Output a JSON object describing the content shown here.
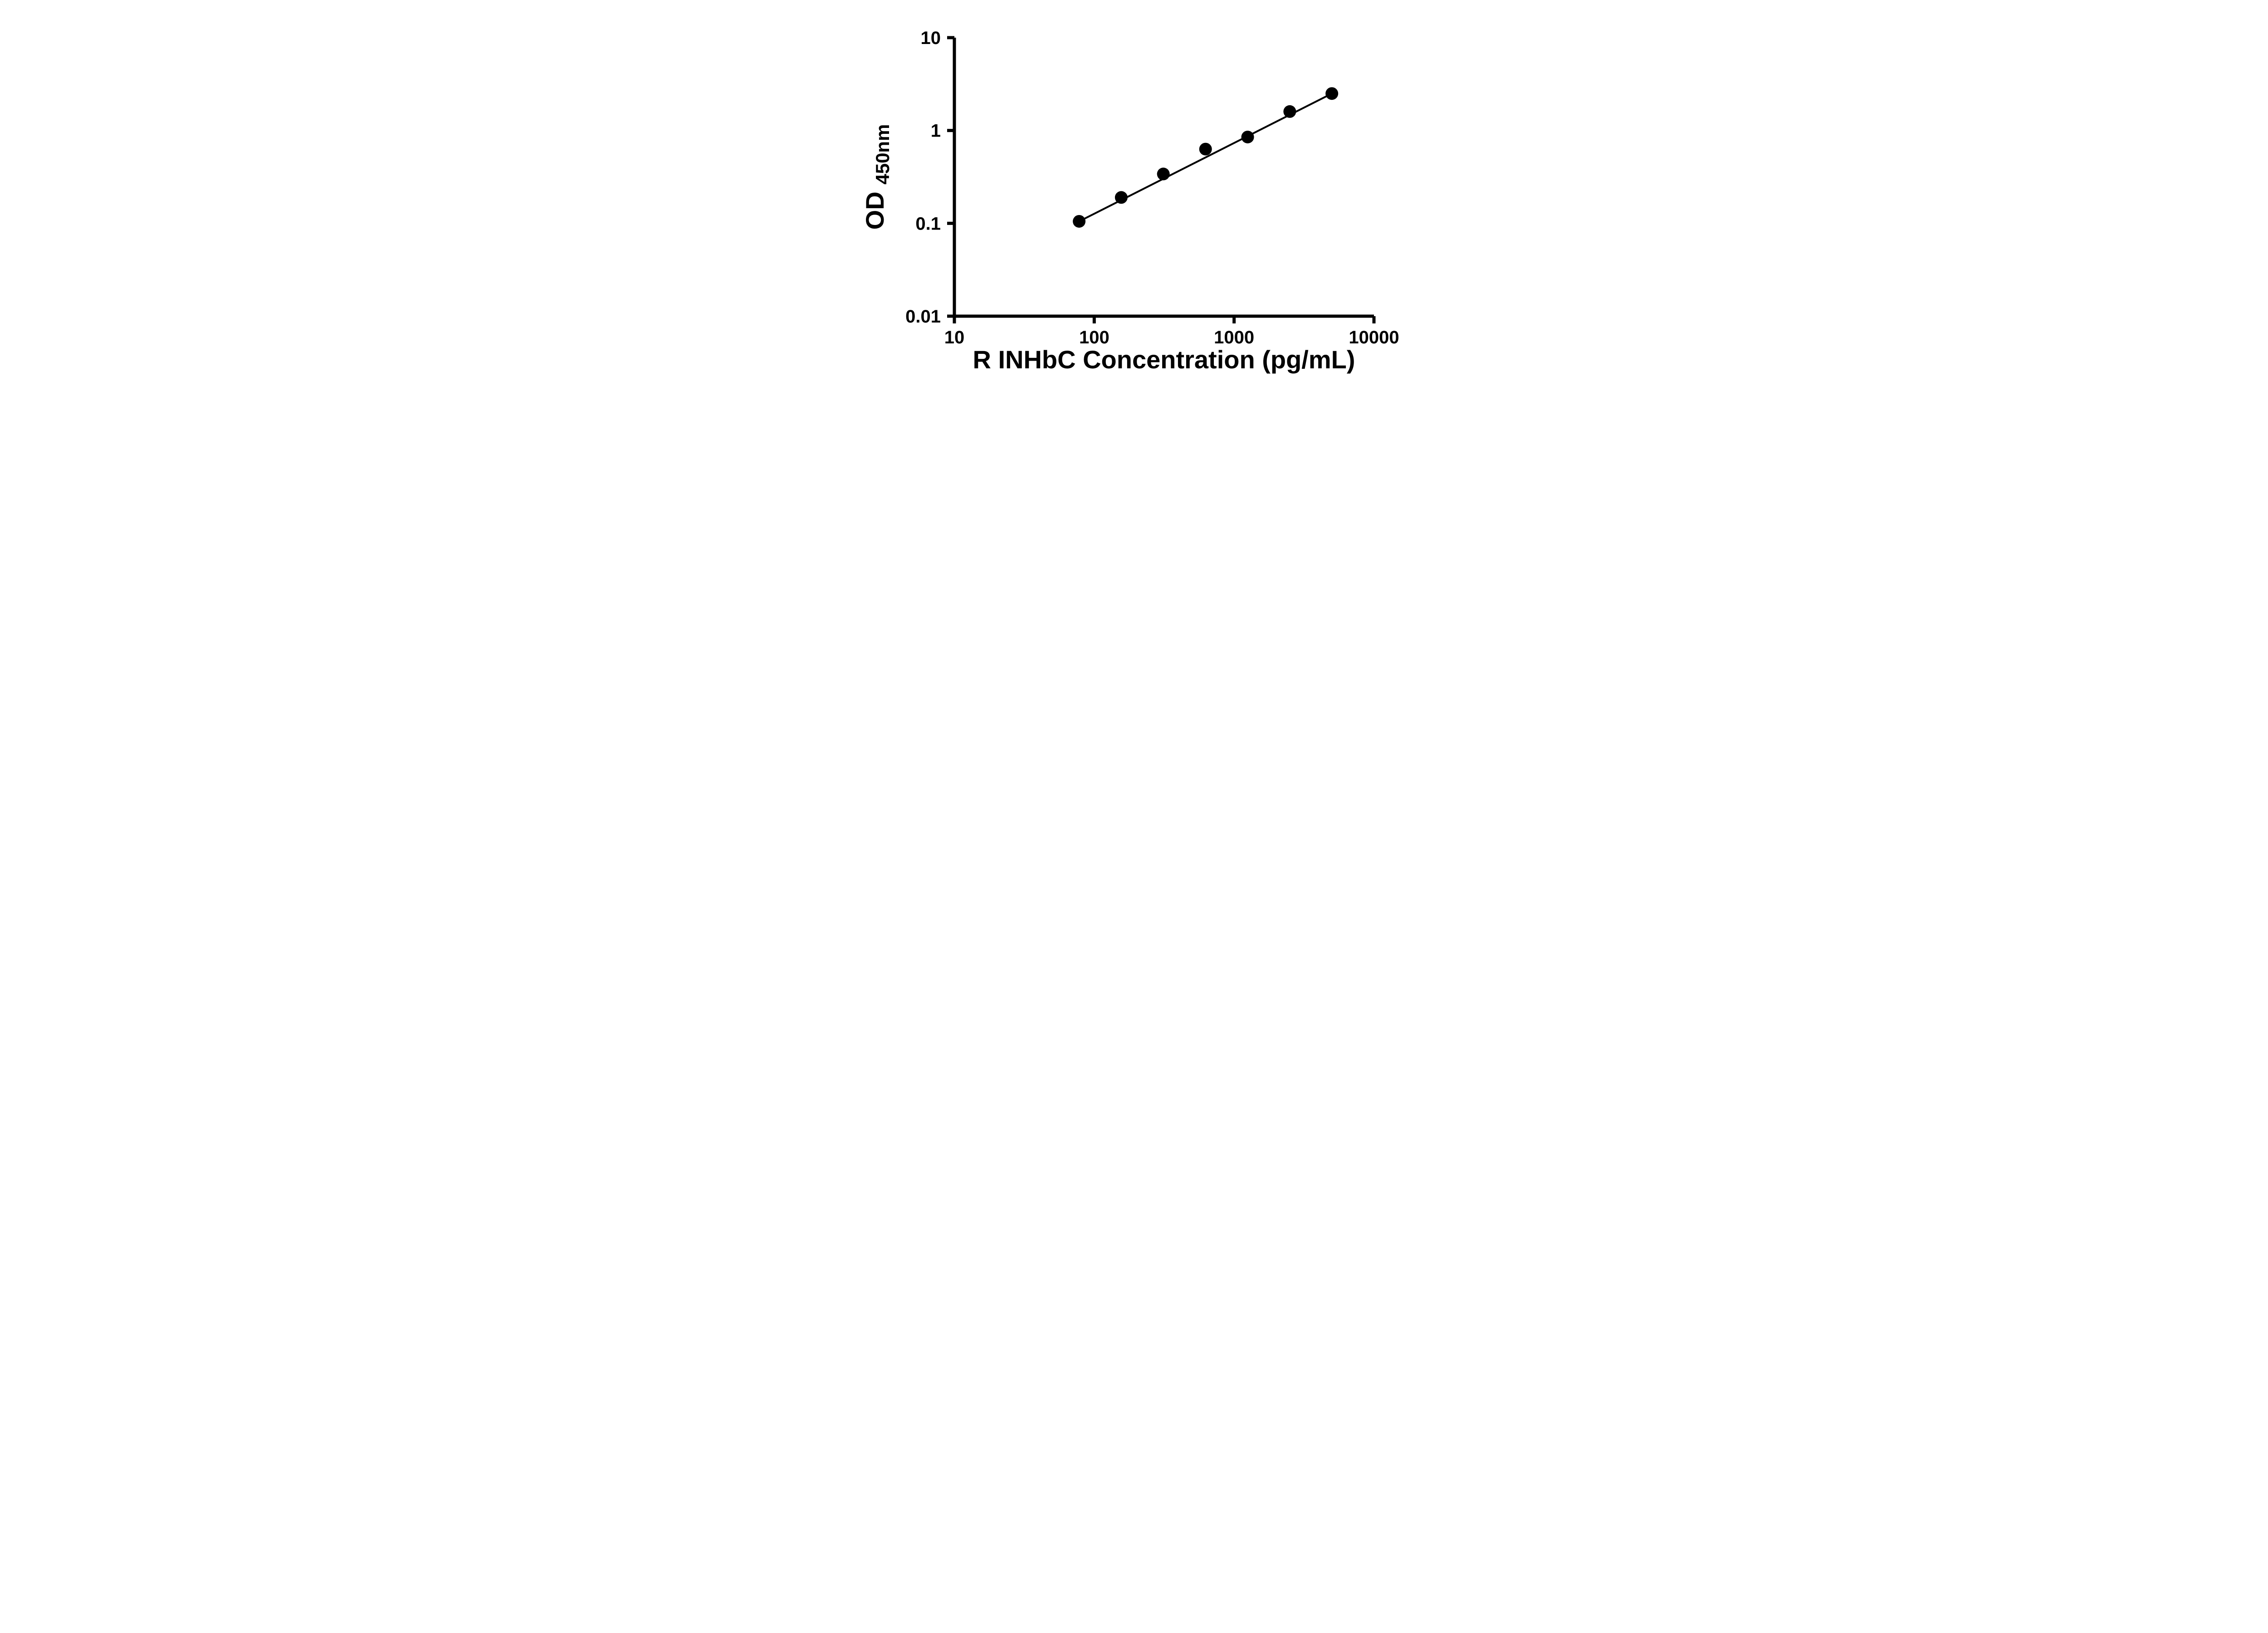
{
  "chart": {
    "xlabel": "R INHbC Concentration (pg/mL)",
    "ylabel_main": "OD",
    "ylabel_sub": "450nm",
    "x_ticks": [
      "10",
      "100",
      "1000",
      "10000"
    ],
    "y_ticks": [
      "10",
      "1",
      "0.1",
      "0.01"
    ]
  },
  "chart_data": {
    "type": "scatter",
    "title": "",
    "xlabel": "R INHbC Concentration (pg/mL)",
    "ylabel": "OD450nm",
    "x_scale": "log10",
    "y_scale": "log10",
    "xlim": [
      10,
      10000
    ],
    "ylim": [
      0.01,
      10
    ],
    "grid": false,
    "legend_position": "none",
    "marker": {
      "shape": "circle",
      "color": "#000000"
    },
    "line_color": "#000000",
    "trend_line": {
      "type": "straight",
      "from_first_to_last_point": true
    },
    "points": [
      {
        "x": 78,
        "y": 0.105
      },
      {
        "x": 156,
        "y": 0.19
      },
      {
        "x": 312,
        "y": 0.34
      },
      {
        "x": 625,
        "y": 0.63
      },
      {
        "x": 1250,
        "y": 0.85
      },
      {
        "x": 2500,
        "y": 1.6
      },
      {
        "x": 5000,
        "y": 2.5
      }
    ]
  }
}
